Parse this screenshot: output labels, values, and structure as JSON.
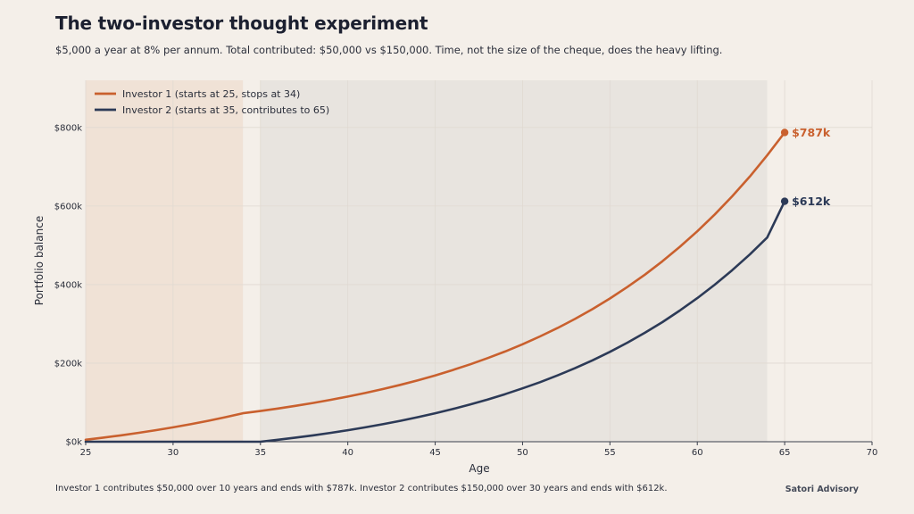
{
  "header": {
    "title": "The two-investor thought experiment",
    "subtitle": "$5,000 a year at 8% per annum. Total contributed: $50,000 vs $150,000. Time, not the size of the cheque, does the heavy lifting."
  },
  "footer": {
    "note": "Investor 1 contributes $50,000 over 10 years and ends with $787k.   Investor 2 contributes $150,000 over 30 years and ends with $612k.",
    "brand": "Satori Advisory"
  },
  "colors": {
    "investor1": "#c9602e",
    "investor2": "#2c3a57",
    "band1": "#f0e2d6",
    "band2": "#e8e4df",
    "grid": "#e0d9d2"
  },
  "chart_data": {
    "type": "line",
    "title": "",
    "xlabel": "Age",
    "ylabel": "Portfolio balance",
    "xlim": [
      25,
      70
    ],
    "ylim": [
      0,
      920000
    ],
    "xticks": [
      25,
      30,
      35,
      40,
      45,
      50,
      55,
      60,
      65,
      70
    ],
    "yticks": [
      0,
      200000,
      400000,
      600000,
      800000
    ],
    "ytick_labels": [
      "$0k",
      "$200k",
      "$400k",
      "$600k",
      "$800k"
    ],
    "grid": true,
    "legend_position": "top-left",
    "shaded_ranges": [
      {
        "x_start": 25,
        "x_end": 34,
        "color_key": "band1"
      },
      {
        "x_start": 35,
        "x_end": 64,
        "color_key": "band2"
      }
    ],
    "series": [
      {
        "name": "Investor 1 (starts at 25, stops at 34)",
        "color_key": "investor1",
        "end_label": "$787k",
        "x": [
          25,
          26,
          27,
          28,
          29,
          30,
          31,
          32,
          33,
          34,
          35,
          36,
          37,
          38,
          39,
          40,
          41,
          42,
          43,
          44,
          45,
          46,
          47,
          48,
          49,
          50,
          51,
          52,
          53,
          54,
          55,
          56,
          57,
          58,
          59,
          60,
          61,
          62,
          63,
          64,
          65
        ],
        "values": [
          5000,
          10400,
          16232,
          22531,
          29333,
          36680,
          44614,
          53183,
          62438,
          72433,
          78228,
          84486,
          91245,
          98545,
          106428,
          114943,
          124138,
          134069,
          144795,
          156378,
          168889,
          182400,
          196992,
          212751,
          229771,
          248153,
          268005,
          289445,
          312601,
          337609,
          364617,
          393787,
          425290,
          459313,
          496058,
          535743,
          578602,
          624890,
          674882,
          728872,
          787182
        ]
      },
      {
        "name": "Investor 2 (starts at 35, contributes to 65)",
        "color_key": "investor2",
        "end_label": "$612k",
        "x": [
          25,
          26,
          27,
          28,
          29,
          30,
          31,
          32,
          33,
          34,
          35,
          36,
          37,
          38,
          39,
          40,
          41,
          42,
          43,
          44,
          45,
          46,
          47,
          48,
          49,
          50,
          51,
          52,
          53,
          54,
          55,
          56,
          57,
          58,
          59,
          60,
          61,
          62,
          63,
          64,
          65
        ],
        "values": [
          0,
          0,
          0,
          0,
          0,
          0,
          0,
          0,
          0,
          0,
          0,
          5000,
          10400,
          16232,
          22531,
          29333,
          36680,
          44614,
          53183,
          62438,
          72433,
          83227,
          94886,
          107476,
          121074,
          135760,
          151621,
          168751,
          187251,
          207231,
          228810,
          252115,
          277284,
          304467,
          333824,
          365530,
          399772,
          436754,
          476694,
          519830,
          612000
        ]
      }
    ]
  }
}
